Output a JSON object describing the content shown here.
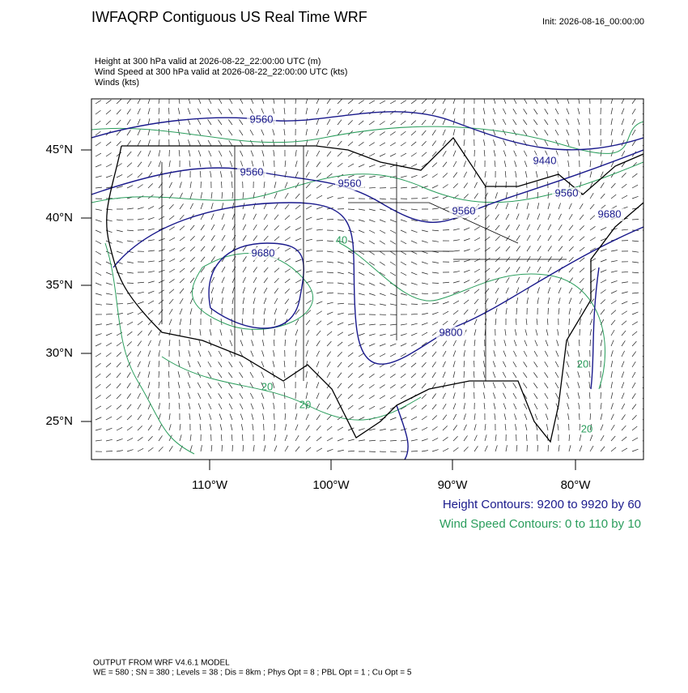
{
  "header": {
    "title": "IWFAQRP Contiguous US Real Time WRF",
    "init": "Init: 2026-08-16_00:00:00"
  },
  "fields": [
    "Height at 300 hPa valid at 2026-08-22_22:00:00 UTC   (m)",
    "Wind Speed at 300 hPa valid at 2026-08-22_22:00:00 UTC   (kts)",
    "Winds   (kts)"
  ],
  "map": {
    "lat_labels": [
      "45°N",
      "40°N",
      "35°N",
      "30°N",
      "25°N"
    ],
    "lon_labels": [
      "110°W",
      "100°W",
      "90°W",
      "80°W"
    ],
    "height_contour_labels": [
      "9560",
      "9560",
      "9560",
      "9560",
      "9440",
      "9560",
      "9680",
      "9800",
      "9680"
    ],
    "wind_contour_labels": [
      "20",
      "20",
      "40",
      "20",
      "20"
    ]
  },
  "legend": {
    "height": "Height Contours: 9200 to 9920 by 60",
    "wind": "Wind Speed Contours: 0 to 110 by 10"
  },
  "footer": [
    "OUTPUT FROM WRF V4.6.1 MODEL",
    "WE = 580 ; SN = 380 ; Levels = 38 ; Dis = 8km ; Phys Opt = 8 ; PBL Opt = 1 ; Cu Opt = 5"
  ]
}
